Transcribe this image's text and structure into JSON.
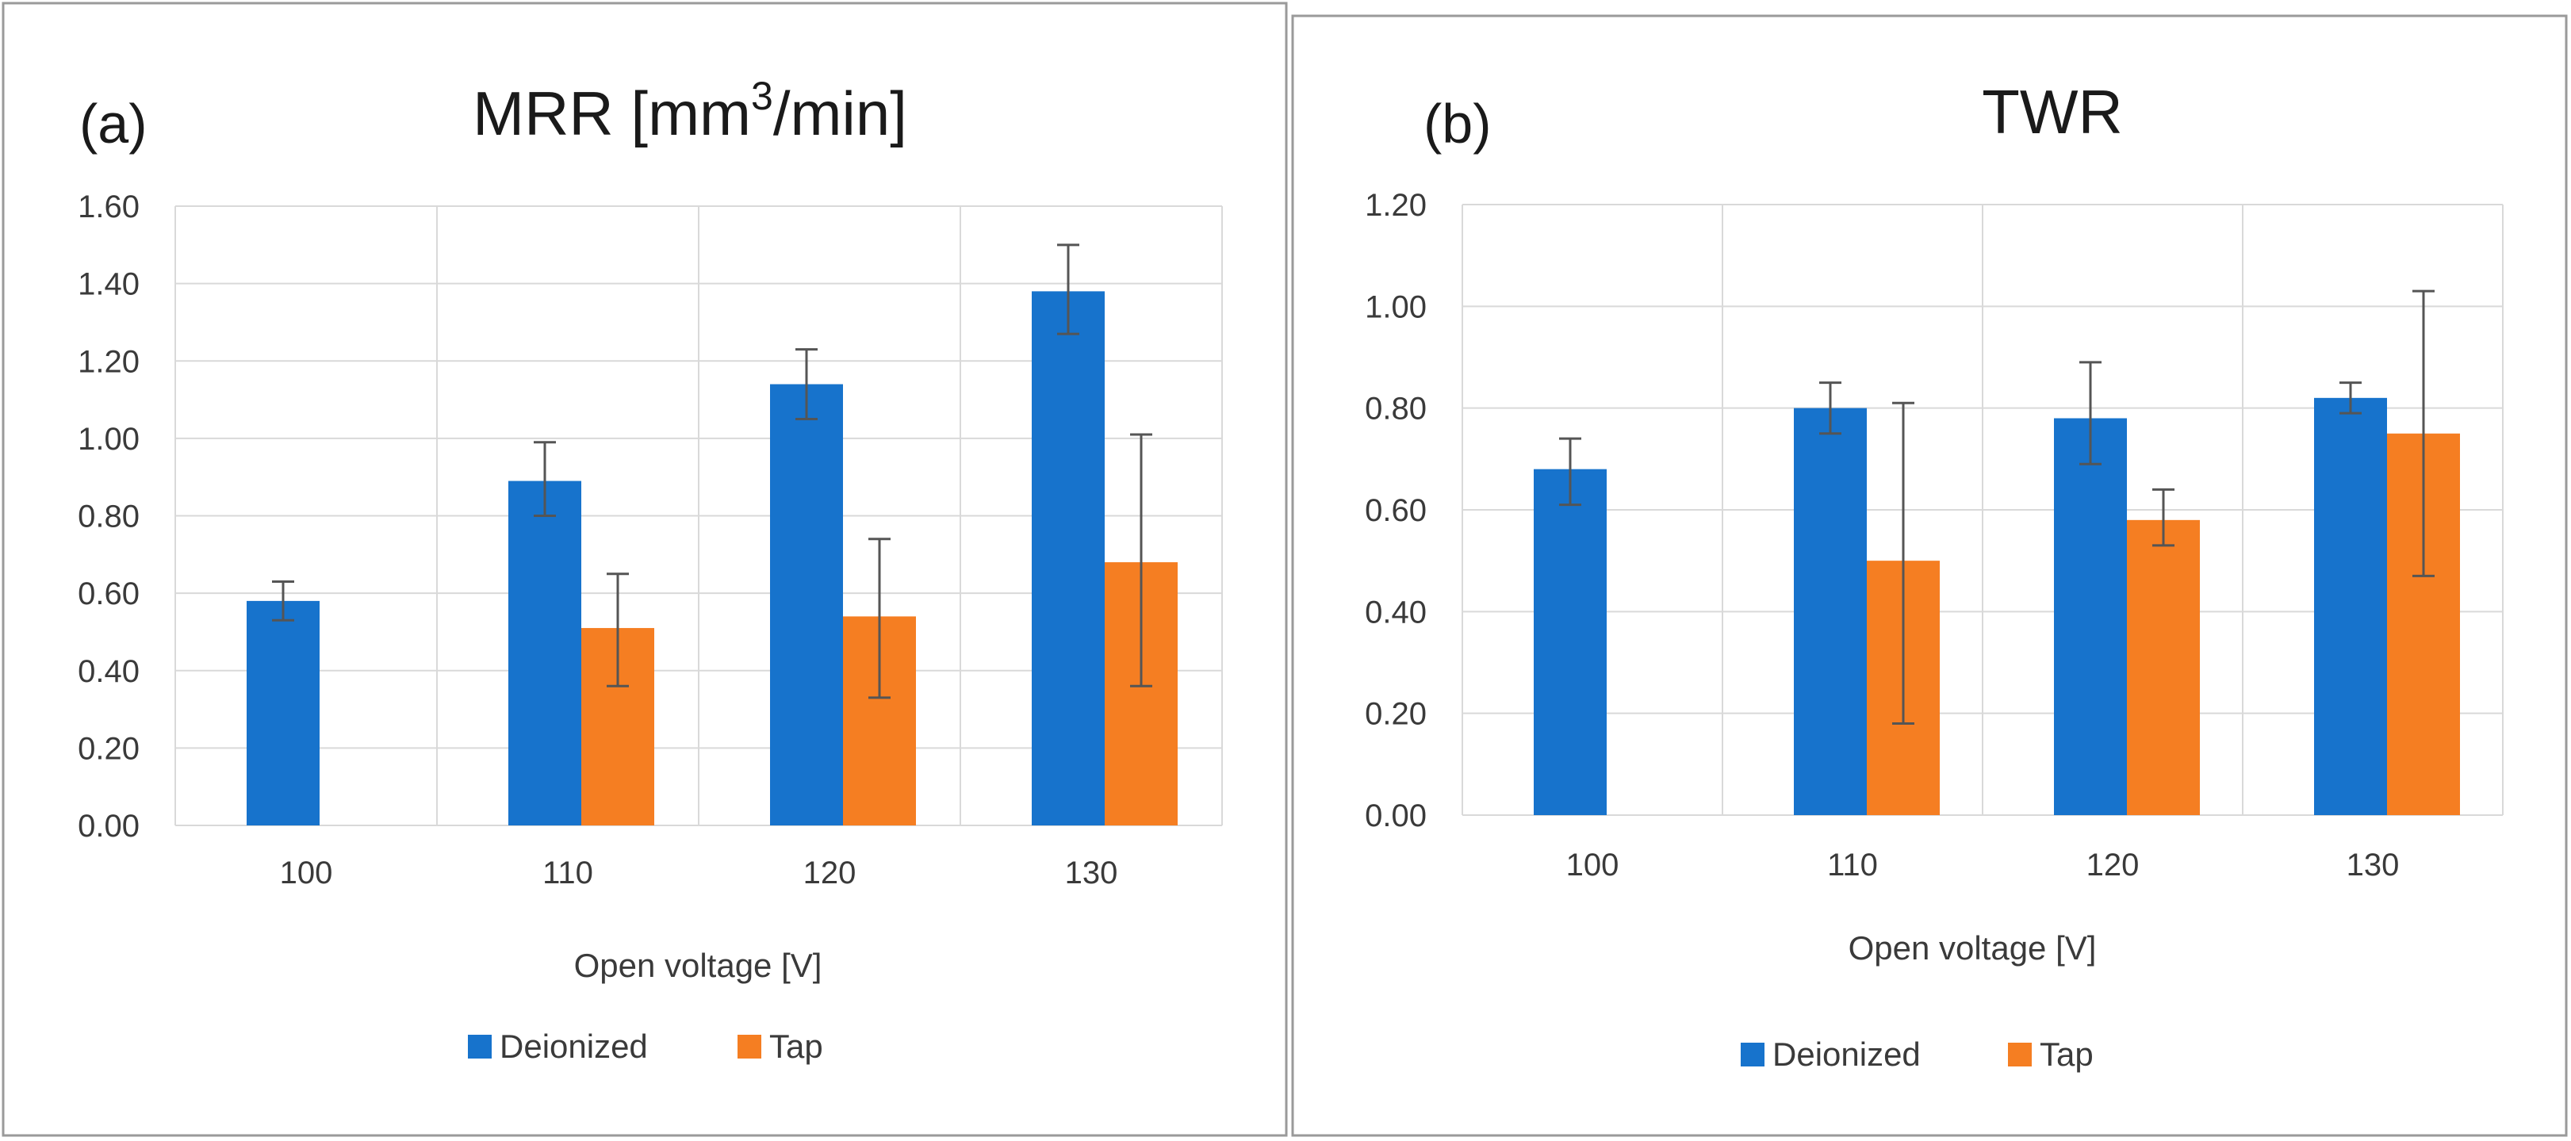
{
  "colors": {
    "deionized": "#1773CC",
    "tap": "#F57E22"
  },
  "chart_data": [
    {
      "type": "bar",
      "panel_label": "(a)",
      "title_base": "MRR [mm",
      "title_sup": "3",
      "title_tail": "/min]",
      "xlabel": "Open voltage [V]",
      "ylabel": "",
      "categories": [
        "100",
        "110",
        "120",
        "130"
      ],
      "ylim": [
        0,
        1.6
      ],
      "yticks": [
        "0.00",
        "0.20",
        "0.40",
        "0.60",
        "0.80",
        "1.00",
        "1.20",
        "1.40",
        "1.60"
      ],
      "grid": true,
      "legend_position": "bottom",
      "series": [
        {
          "name": "Deionized",
          "values": [
            0.58,
            0.89,
            1.14,
            1.38
          ],
          "error_low": [
            0.53,
            0.8,
            1.05,
            1.27
          ],
          "error_high": [
            0.63,
            0.99,
            1.23,
            1.5
          ]
        },
        {
          "name": "Tap",
          "values": [
            null,
            0.51,
            0.54,
            0.68
          ],
          "error_low": [
            null,
            0.36,
            0.33,
            0.36
          ],
          "error_high": [
            null,
            0.65,
            0.74,
            1.01
          ]
        }
      ]
    },
    {
      "type": "bar",
      "panel_label": "(b)",
      "title_base": "TWR",
      "title_sup": "",
      "title_tail": "",
      "xlabel": "Open voltage [V]",
      "ylabel": "",
      "categories": [
        "100",
        "110",
        "120",
        "130"
      ],
      "ylim": [
        0,
        1.2
      ],
      "yticks": [
        "0.00",
        "0.20",
        "0.40",
        "0.60",
        "0.80",
        "1.00",
        "1.20"
      ],
      "grid": true,
      "legend_position": "bottom",
      "series": [
        {
          "name": "Deionized",
          "values": [
            0.68,
            0.8,
            0.78,
            0.82
          ],
          "error_low": [
            0.61,
            0.75,
            0.69,
            0.79
          ],
          "error_high": [
            0.74,
            0.85,
            0.89,
            0.85
          ]
        },
        {
          "name": "Tap",
          "values": [
            null,
            0.5,
            0.58,
            0.75
          ],
          "error_low": [
            null,
            0.18,
            0.53,
            0.47
          ],
          "error_high": [
            null,
            0.81,
            0.64,
            1.03
          ]
        }
      ]
    }
  ]
}
